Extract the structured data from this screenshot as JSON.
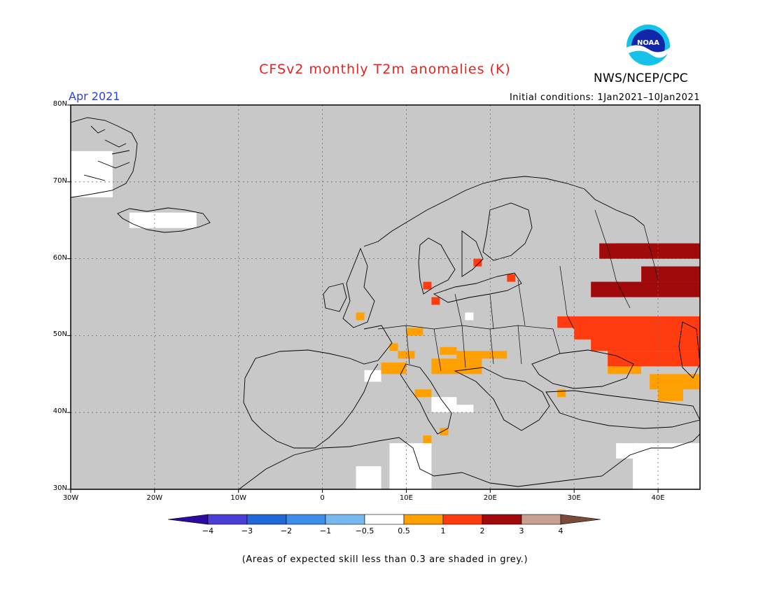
{
  "title": "CFSv2 monthly T2m anomalies (K)",
  "valid_month": "Apr 2021",
  "initial_conditions": "Initial conditions: 1Jan2021–10Jan2021",
  "agency": "NWS/NCEP/CPC",
  "logo_text": "NOAA",
  "footnote": "(Areas of expected skill less than 0.3 are shaded in grey.)",
  "map": {
    "lon_range": [
      -30,
      45
    ],
    "lat_range": [
      30,
      80
    ],
    "latitude_labels": [
      {
        "value": 80,
        "text": "80N"
      },
      {
        "value": 70,
        "text": "70N"
      },
      {
        "value": 60,
        "text": "60N"
      },
      {
        "value": 50,
        "text": "50N"
      },
      {
        "value": 40,
        "text": "40N"
      },
      {
        "value": 30,
        "text": "30N"
      }
    ],
    "longitude_labels": [
      {
        "value": -30,
        "text": "30W"
      },
      {
        "value": -20,
        "text": "20W"
      },
      {
        "value": -10,
        "text": "10W"
      },
      {
        "value": 0,
        "text": "0"
      },
      {
        "value": 10,
        "text": "10E"
      },
      {
        "value": 20,
        "text": "20E"
      },
      {
        "value": 30,
        "text": "30E"
      },
      {
        "value": 40,
        "text": "40E"
      }
    ],
    "grid": "dotted",
    "low_skill_color": "#c8c8c8"
  },
  "colorbar": {
    "ticks": [
      "−4",
      "−3",
      "−2",
      "−1",
      "−0.5",
      "0.5",
      "1",
      "2",
      "3",
      "4"
    ],
    "colors": [
      "#2b0aa0",
      "#4b3ed6",
      "#2068d8",
      "#3c8ee8",
      "#78b8f0",
      "#ffffff",
      "#ffa000",
      "#ff3c10",
      "#a00a0a",
      "#c8a090",
      "#7a4a3a"
    ]
  },
  "anomaly_regions": [
    {
      "name": "western-russia-3-to-4",
      "category": "3",
      "color": "#a00a0a",
      "cells": [
        [
          33,
          60,
          12,
          2
        ],
        [
          35,
          61,
          4,
          1
        ],
        [
          38,
          57,
          7,
          2
        ],
        [
          32,
          55,
          14,
          2
        ]
      ]
    },
    {
      "name": "ukraine-russia-2-to-3",
      "category": "2",
      "color": "#ff3c10",
      "cells": [
        [
          28,
          51,
          17,
          1.5
        ],
        [
          30,
          49.5,
          15,
          2.5
        ],
        [
          32,
          48,
          13,
          2
        ],
        [
          34,
          46,
          11,
          2
        ]
      ]
    },
    {
      "name": "caucasus-1-to-2",
      "category": "1",
      "color": "#ffa000",
      "cells": [
        [
          39,
          43,
          6,
          2
        ],
        [
          34,
          45,
          4,
          1
        ],
        [
          40,
          41.5,
          3,
          1.5
        ]
      ]
    },
    {
      "name": "central-europe-1-to-2",
      "category": "1",
      "color": "#ffa000",
      "cells": [
        [
          16,
          47,
          6,
          1
        ],
        [
          13,
          45,
          6,
          2
        ],
        [
          7,
          45,
          3,
          1.5
        ],
        [
          9,
          47,
          2,
          1
        ],
        [
          10,
          50,
          2,
          1
        ],
        [
          14,
          47.5,
          2,
          1
        ],
        [
          11,
          42,
          2,
          1
        ],
        [
          14,
          37,
          1,
          1
        ],
        [
          4,
          52,
          1,
          1
        ],
        [
          8,
          48,
          1,
          1
        ],
        [
          12,
          36,
          1,
          1
        ],
        [
          28,
          42,
          1,
          1
        ]
      ]
    },
    {
      "name": "baltic-2-to-3",
      "category": "2",
      "color": "#ff3c10",
      "cells": [
        [
          12,
          56,
          1,
          1
        ],
        [
          13,
          54,
          1,
          1
        ],
        [
          18,
          59,
          1,
          1
        ],
        [
          22,
          57,
          1,
          1
        ]
      ]
    },
    {
      "name": "near-normal-white",
      "category": "-0.5 to 0.5",
      "color": "#ffffff",
      "cells": [
        [
          -30,
          68,
          5,
          6
        ],
        [
          -23,
          64,
          8,
          2
        ],
        [
          8,
          30,
          5,
          6
        ],
        [
          4,
          30,
          3,
          3
        ],
        [
          37,
          30,
          8,
          6
        ],
        [
          13,
          40,
          3,
          2
        ],
        [
          5,
          44,
          2,
          1.5
        ],
        [
          16,
          40,
          2,
          1
        ],
        [
          17,
          52,
          1,
          1
        ],
        [
          35,
          34,
          2,
          2
        ]
      ]
    }
  ]
}
